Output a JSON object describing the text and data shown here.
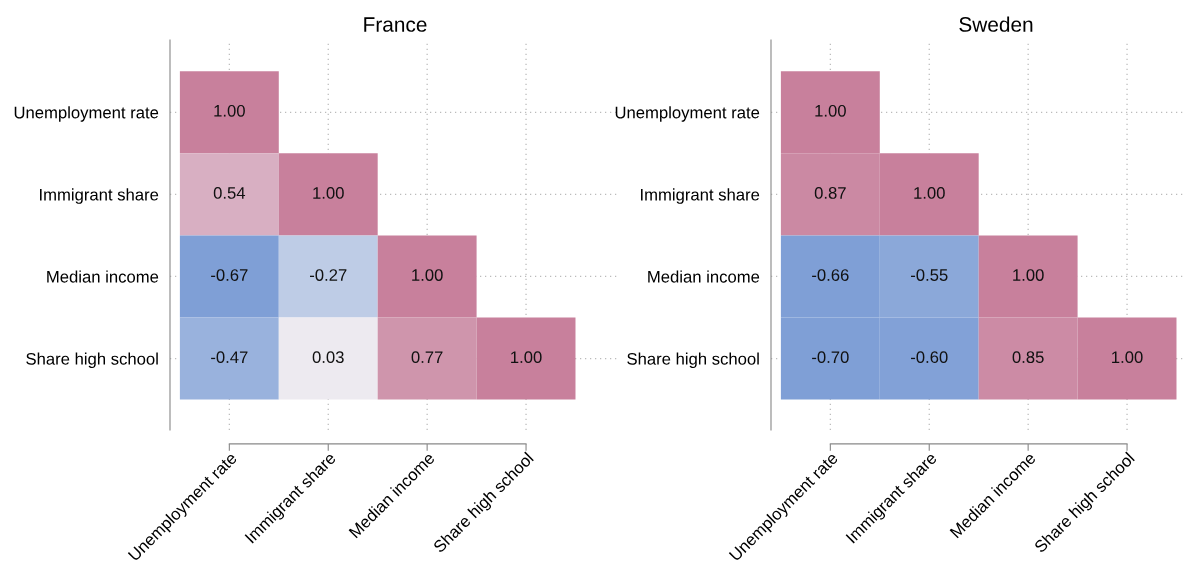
{
  "chart_data": [
    {
      "type": "heatmap",
      "title": "France",
      "grid": true,
      "categories": [
        "Unemployment rate",
        "Immigrant share",
        "Median income",
        "Share high school"
      ],
      "y_categories": [
        "Unemployment rate",
        "Immigrant share",
        "Median income",
        "Share high school"
      ],
      "cells": [
        [
          1.0,
          null,
          null,
          null
        ],
        [
          0.54,
          1.0,
          null,
          null
        ],
        [
          -0.67,
          -0.27,
          1.0,
          null
        ],
        [
          -0.47,
          0.03,
          0.77,
          1.0
        ]
      ],
      "cell_labels": [
        [
          "1.00",
          null,
          null,
          null
        ],
        [
          "0.54",
          "1.00",
          null,
          null
        ],
        [
          "-0.67",
          "-0.27",
          "1.00",
          null
        ],
        [
          "-0.47",
          "0.03",
          "0.77",
          "1.00"
        ]
      ]
    },
    {
      "type": "heatmap",
      "title": "Sweden",
      "grid": true,
      "categories": [
        "Unemployment rate",
        "Immigrant share",
        "Median income",
        "Share high school"
      ],
      "y_categories": [
        "Unemployment rate",
        "Immigrant share",
        "Median income",
        "Share high school"
      ],
      "cells": [
        [
          1.0,
          null,
          null,
          null
        ],
        [
          0.87,
          1.0,
          null,
          null
        ],
        [
          -0.66,
          -0.55,
          1.0,
          null
        ],
        [
          -0.7,
          -0.6,
          0.85,
          1.0
        ]
      ],
      "cell_labels": [
        [
          "1.00",
          null,
          null,
          null
        ],
        [
          "0.87",
          "1.00",
          null,
          null
        ],
        [
          "-0.66",
          "-0.55",
          "1.00",
          null
        ],
        [
          "-0.70",
          "-0.60",
          "0.85",
          "1.00"
        ]
      ]
    }
  ]
}
